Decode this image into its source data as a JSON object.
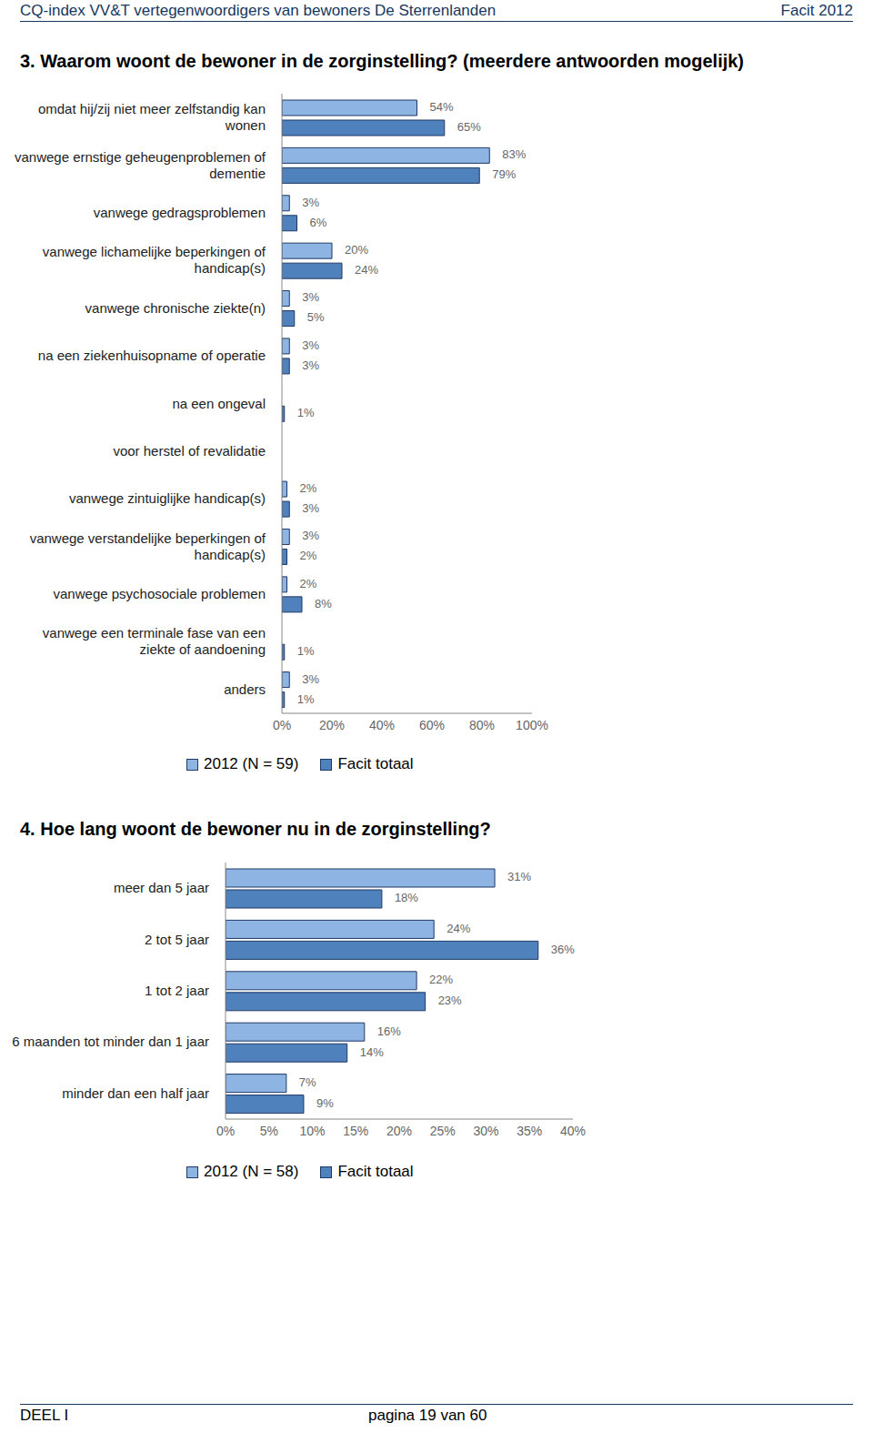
{
  "header": {
    "left": "CQ-index VV&T vertegenwoordigers van bewoners De Sterrenlanden",
    "right": "Facit 2012"
  },
  "chart_data": [
    {
      "type": "bar",
      "title": "3. Waarom woont de bewoner in de zorginstelling? (meerdere antwoorden mogelijk)",
      "orientation": "horizontal",
      "data_labels": true,
      "grid": false,
      "categories": [
        "omdat hij/zij niet meer zelfstandig kan wonen",
        "vanwege ernstige geheugenproblemen of dementie",
        "vanwege gedragsproblemen",
        "vanwege lichamelijke beperkingen of handicap(s)",
        "vanwege chronische ziekte(n)",
        "na een ziekenhuisopname of operatie",
        "na een ongeval",
        "voor herstel of revalidatie",
        "vanwege zintuiglijke handicap(s)",
        "vanwege verstandelijke beperkingen of handicap(s)",
        "vanwege psychosociale problemen",
        "vanwege een terminale fase van een ziekte of aandoening",
        "anders"
      ],
      "series": [
        {
          "name": "2012 (N = 59)",
          "color": "#8eb4e3",
          "values": [
            54,
            83,
            3,
            20,
            3,
            3,
            null,
            null,
            2,
            3,
            2,
            null,
            3
          ],
          "value_labels": [
            "54%",
            "83%",
            "3%",
            "20%",
            "3%",
            "3%",
            null,
            null,
            "2%",
            "3%",
            "2%",
            null,
            "3%"
          ]
        },
        {
          "name": "Facit totaal",
          "color": "#4f81bd",
          "values": [
            65,
            79,
            6,
            24,
            5,
            3,
            1,
            null,
            3,
            2,
            8,
            1,
            1
          ],
          "value_labels": [
            "65%",
            "79%",
            "6%",
            "24%",
            "5%",
            "3%",
            "1%",
            null,
            "3%",
            "2%",
            "8%",
            "1%",
            "1%"
          ]
        }
      ],
      "xlim": [
        0,
        100
      ],
      "xticks": [
        {
          "value": 0,
          "label": "0%"
        },
        {
          "value": 20,
          "label": "20%"
        },
        {
          "value": 40,
          "label": "40%"
        },
        {
          "value": 60,
          "label": "60%"
        },
        {
          "value": 80,
          "label": "80%"
        },
        {
          "value": 100,
          "label": "100%"
        }
      ]
    },
    {
      "type": "bar",
      "title": "4. Hoe lang woont de bewoner nu in de zorginstelling?",
      "orientation": "horizontal",
      "data_labels": true,
      "grid": false,
      "categories": [
        "meer dan 5 jaar",
        "2 tot 5 jaar",
        "1 tot 2 jaar",
        "6 maanden tot minder dan 1 jaar",
        "minder dan een half jaar"
      ],
      "series": [
        {
          "name": "2012 (N = 58)",
          "color": "#8eb4e3",
          "values": [
            31,
            24,
            22,
            16,
            7
          ],
          "value_labels": [
            "31%",
            "24%",
            "22%",
            "16%",
            "7%"
          ]
        },
        {
          "name": "Facit totaal",
          "color": "#4f81bd",
          "values": [
            18,
            36,
            23,
            14,
            9
          ],
          "value_labels": [
            "18%",
            "36%",
            "23%",
            "14%",
            "9%"
          ]
        }
      ],
      "xlim": [
        0,
        40
      ],
      "xticks": [
        {
          "value": 0,
          "label": "0%"
        },
        {
          "value": 5,
          "label": "5%"
        },
        {
          "value": 10,
          "label": "10%"
        },
        {
          "value": 15,
          "label": "15%"
        },
        {
          "value": 20,
          "label": "20%"
        },
        {
          "value": 25,
          "label": "25%"
        },
        {
          "value": 30,
          "label": "30%"
        },
        {
          "value": 35,
          "label": "35%"
        },
        {
          "value": 40,
          "label": "40%"
        }
      ]
    }
  ],
  "footer": {
    "left": "DEEL I",
    "center": "pagina 19 van 60"
  }
}
